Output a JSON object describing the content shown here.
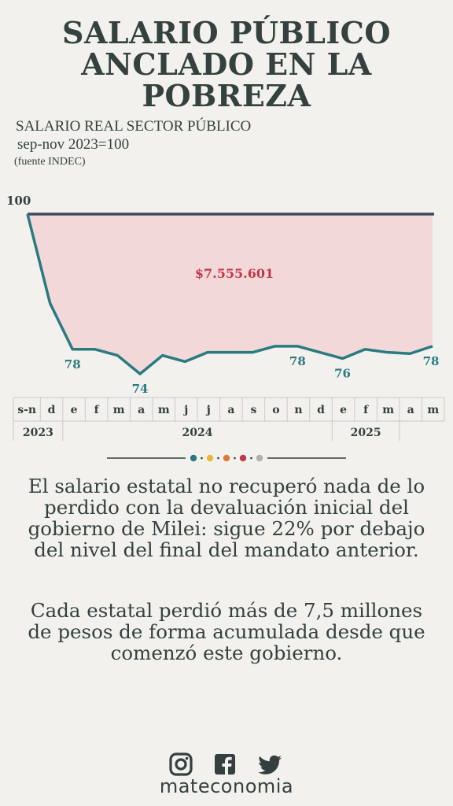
{
  "header": {
    "title": "SALARIO PÚBLICO\nANCLADO EN LA\nPOBREZA",
    "subtitle_line1": "SALARIO REAL SECTOR PÚBLICO",
    "subtitle_line2": "sep-nov 2023=100",
    "source": "(fuente INDEC)"
  },
  "chart_data": {
    "type": "area",
    "title": "SALARIO REAL SECTOR PÚBLICO",
    "ylabel": "sep-nov 2023=100",
    "base_value": 100,
    "base_label": "100",
    "area_annotation": "$7.555.601",
    "categories": [
      "s-n",
      "d",
      "e",
      "f",
      "m",
      "a",
      "m",
      "j",
      "j",
      "a",
      "s",
      "o",
      "n",
      "d",
      "e",
      "f",
      "m",
      "a",
      "m"
    ],
    "year_labels": [
      {
        "year": "2023",
        "span": [
          "s-n",
          "d"
        ]
      },
      {
        "year": "2024",
        "span": [
          "e",
          "d"
        ]
      },
      {
        "year": "2025",
        "span": [
          "e",
          "m"
        ]
      }
    ],
    "series": [
      {
        "values": [
          100,
          85.5,
          78,
          78,
          77,
          74,
          77,
          76,
          77.5,
          77.5,
          77.5,
          78.5,
          78.5,
          77.5,
          76.5,
          78,
          77.5,
          77.3,
          78.5
        ]
      }
    ],
    "data_labels": [
      {
        "index": 2,
        "label": "78"
      },
      {
        "index": 5,
        "label": "74"
      },
      {
        "index": 12,
        "label": "78"
      },
      {
        "index": 14,
        "label": "76"
      },
      {
        "index": 18,
        "label": "78"
      }
    ],
    "colors": {
      "line": "#2a7a80",
      "area": "#f3d8da",
      "baseline": "#3d4a5c",
      "annotation": "#c0394a",
      "label": "#2a7a80"
    }
  },
  "divider": {
    "dot_colors": [
      "#2a7a80",
      "#e8b93a",
      "#e07a3a",
      "#c0394a",
      "#b0b0b0"
    ]
  },
  "body": {
    "paragraph1": "El salario estatal no recuperó nada de lo perdido con la devaluación inicial del gobierno de Milei: sigue 22% por debajo del nivel del final del mandato anterior.",
    "paragraph2": "Cada estatal perdió más de 7,5 millones de pesos de forma acumulada desde que comenzó este gobierno."
  },
  "footer": {
    "icons": [
      "instagram-icon",
      "facebook-icon",
      "twitter-icon"
    ],
    "brand": "mateconomia"
  }
}
